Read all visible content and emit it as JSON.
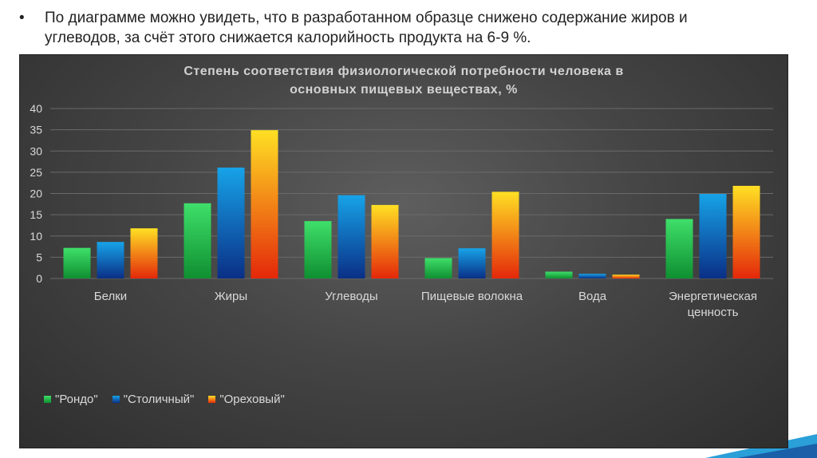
{
  "slide": {
    "bullet": "•",
    "text_line1": "По диаграмме можно увидеть, что в разработанном образце снижено содержание жиров и",
    "text_line2": "углеводов, за счёт этого снижается калорийность продукта на 6-9 %."
  },
  "colors": {
    "series_top": [
      "#3fdf6a",
      "#17a3e8",
      "#ffe024"
    ],
    "series_bottom": [
      "#0f8f31",
      "#0a2f86",
      "#e4280a"
    ],
    "axis_text": "#d9d9d9",
    "grid": "#6a6a6a"
  },
  "chart_data": {
    "type": "bar",
    "title_line1": "Степень соответствия физиологической потребности человека в",
    "title_line2": "основных пищевых веществах, %",
    "categories": [
      [
        "Белки"
      ],
      [
        "Жиры"
      ],
      [
        "Углеводы"
      ],
      [
        "Пищевые волокна"
      ],
      [
        "Вода"
      ],
      [
        "Энергетическая",
        "ценность"
      ]
    ],
    "series": [
      {
        "name": "\"Рондо\"",
        "values": [
          7.2,
          17.7,
          13.5,
          4.8,
          1.6,
          14.0
        ]
      },
      {
        "name": "\"Столичный\"",
        "values": [
          8.6,
          26.1,
          19.6,
          7.1,
          1.1,
          19.9
        ]
      },
      {
        "name": "\"Ореховый\"",
        "values": [
          11.8,
          34.9,
          17.3,
          20.4,
          0.9,
          21.8
        ]
      }
    ],
    "ylim": [
      0,
      40
    ],
    "yticks": [
      0,
      5,
      10,
      15,
      20,
      25,
      30,
      35,
      40
    ],
    "grid": true,
    "legend_position": "bottom-left"
  }
}
